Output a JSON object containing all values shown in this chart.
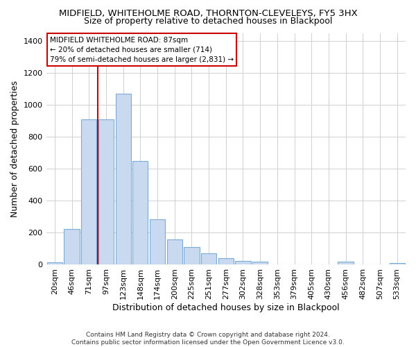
{
  "title": "MIDFIELD, WHITEHOLME ROAD, THORNTON-CLEVELEYS, FY5 3HX",
  "subtitle": "Size of property relative to detached houses in Blackpool",
  "xlabel": "Distribution of detached houses by size in Blackpool",
  "ylabel": "Number of detached properties",
  "footer_line1": "Contains HM Land Registry data © Crown copyright and database right 2024.",
  "footer_line2": "Contains public sector information licensed under the Open Government Licence v3.0.",
  "bar_labels": [
    "20sqm",
    "46sqm",
    "71sqm",
    "97sqm",
    "123sqm",
    "148sqm",
    "174sqm",
    "200sqm",
    "225sqm",
    "251sqm",
    "277sqm",
    "302sqm",
    "328sqm",
    "353sqm",
    "379sqm",
    "405sqm",
    "430sqm",
    "456sqm",
    "482sqm",
    "507sqm",
    "533sqm"
  ],
  "bar_values": [
    15,
    225,
    910,
    910,
    1070,
    650,
    285,
    160,
    110,
    70,
    40,
    25,
    20,
    0,
    0,
    0,
    0,
    20,
    0,
    0,
    10
  ],
  "bar_color": "#c8d9f0",
  "bar_edge_color": "#7aacd6",
  "ylim": [
    0,
    1450
  ],
  "yticks": [
    0,
    200,
    400,
    600,
    800,
    1000,
    1200,
    1400
  ],
  "vline_color": "#cc0000",
  "vline_x": 2.5,
  "annotation_text": "MIDFIELD WHITEHOLME ROAD: 87sqm\n← 20% of detached houses are smaller (714)\n79% of semi-detached houses are larger (2,831) →",
  "annotation_box_color": "#ffffff",
  "annotation_border_color": "#cc0000",
  "grid_color": "#d0d0d0",
  "bg_color": "#ffffff",
  "title_fontsize": 9.5,
  "subtitle_fontsize": 9,
  "axis_label_fontsize": 9,
  "tick_fontsize": 8,
  "footer_fontsize": 6.5
}
